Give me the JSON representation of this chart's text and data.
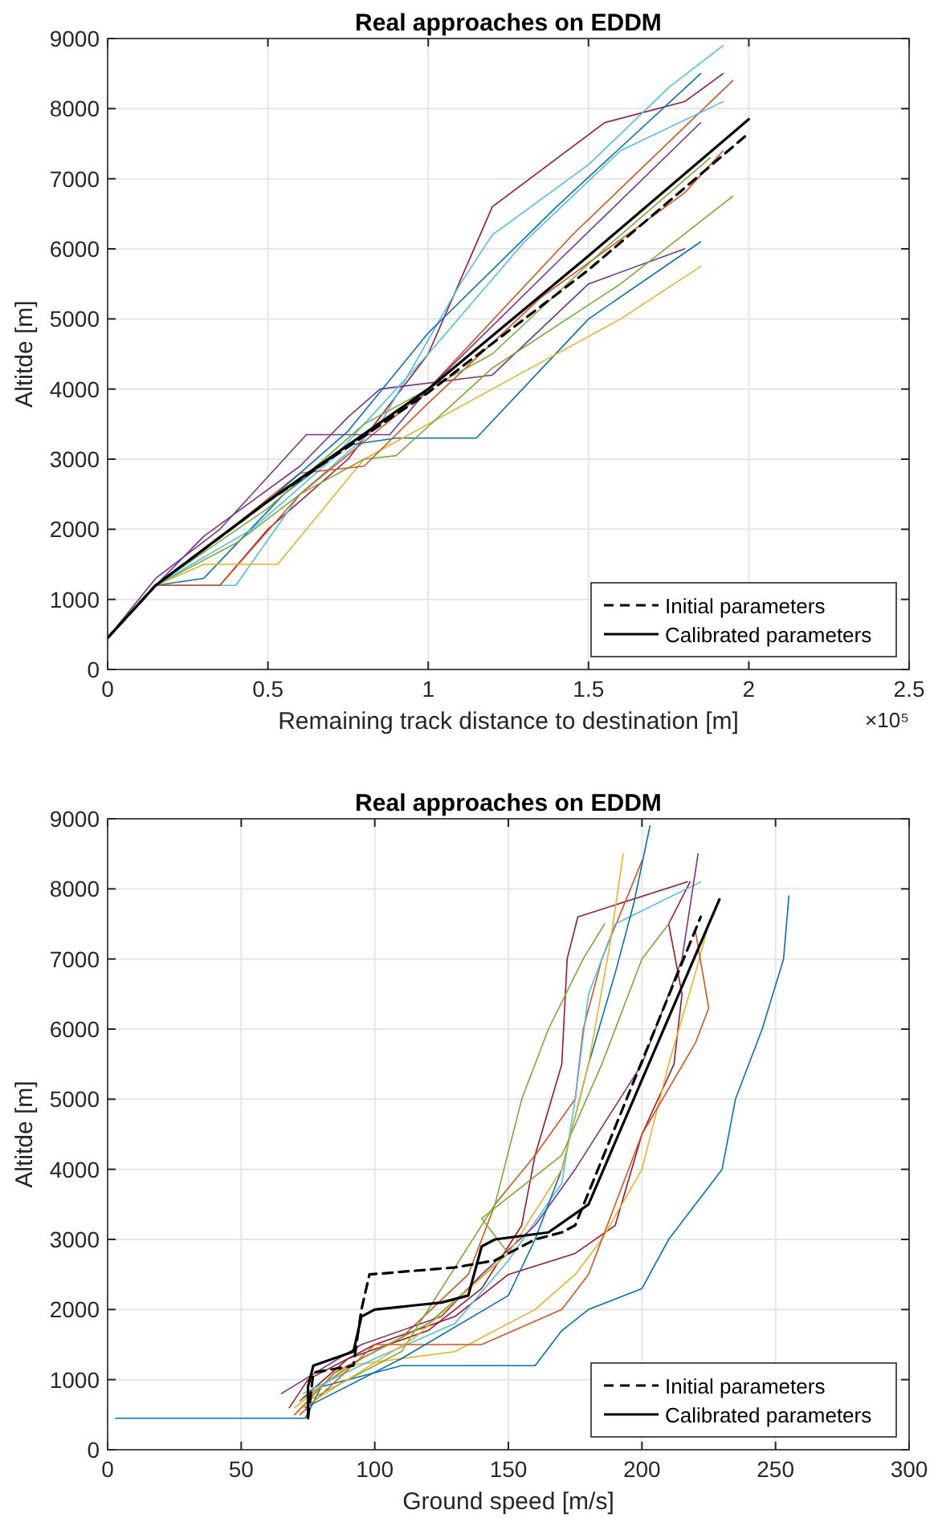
{
  "chart_data": [
    {
      "type": "line",
      "title": "Real approaches on EDDM",
      "xlabel": "Remaining track distance to destination [m]",
      "ylabel": "Altitde [m]",
      "annotations": [
        "×10⁵"
      ],
      "xlim": [
        0,
        2.5
      ],
      "xticks": [
        0,
        0.5,
        1,
        1.5,
        2,
        2.5
      ],
      "ylim": [
        0,
        9000
      ],
      "yticks": [
        0,
        1000,
        2000,
        3000,
        4000,
        5000,
        6000,
        7000,
        8000,
        9000
      ],
      "grid": true,
      "legend": "bottom right",
      "series": [
        {
          "color": "#a2142f",
          "x": [
            0,
            0.15,
            0.35,
            0.5,
            0.75,
            1,
            1.2,
            1.55,
            1.8,
            1.92
          ],
          "values": [
            450,
            1200,
            1200,
            2000,
            3000,
            4500,
            6600,
            7800,
            8100,
            8500
          ]
        },
        {
          "color": "#4dbeee",
          "x": [
            0,
            0.15,
            0.4,
            0.6,
            0.85,
            1.1,
            1.2,
            1.5,
            1.75,
            1.92
          ],
          "values": [
            450,
            1200,
            1200,
            2500,
            3500,
            5500,
            6200,
            7200,
            8300,
            8900
          ]
        },
        {
          "color": "#0072bd",
          "x": [
            0,
            0.15,
            0.3,
            0.55,
            0.75,
            0.9,
            1.15,
            1.5,
            1.85
          ],
          "values": [
            450,
            1200,
            1300,
            2500,
            3200,
            3300,
            3300,
            5000,
            6100
          ]
        },
        {
          "color": "#d95319",
          "x": [
            0,
            0.15,
            0.35,
            0.6,
            1,
            1.45,
            1.95
          ],
          "values": [
            450,
            1200,
            1200,
            2500,
            4000,
            6200,
            8400
          ]
        },
        {
          "color": "#edb120",
          "x": [
            0,
            0.15,
            0.3,
            0.53,
            0.8,
            1.2,
            1.6,
            1.85
          ],
          "values": [
            450,
            1200,
            1500,
            1500,
            3000,
            4000,
            5000,
            5750
          ]
        },
        {
          "color": "#7e2f8e",
          "x": [
            0,
            0.15,
            0.3,
            0.45,
            0.6,
            0.75,
            0.85,
            1.2,
            1.5,
            1.8
          ],
          "values": [
            450,
            1200,
            1900,
            2400,
            2900,
            3600,
            4000,
            4200,
            5500,
            6000
          ]
        },
        {
          "color": "#77ac30",
          "x": [
            0,
            0.15,
            0.4,
            0.6,
            0.8,
            0.9,
            1.2,
            1.6,
            1.95
          ],
          "values": [
            450,
            1200,
            1800,
            2500,
            3000,
            3050,
            4300,
            5500,
            6750
          ]
        },
        {
          "color": "#4dbeee",
          "x": [
            0,
            0.15,
            0.45,
            0.7,
            1,
            1.3,
            1.6,
            1.92
          ],
          "values": [
            450,
            1200,
            2000,
            3000,
            4500,
            6100,
            7400,
            8100
          ]
        },
        {
          "color": "#7e2f8e",
          "x": [
            0,
            0.15,
            0.35,
            0.62,
            0.88,
            1,
            1.4,
            1.85
          ],
          "values": [
            450,
            1300,
            2000,
            3350,
            3350,
            4000,
            5800,
            7800
          ]
        },
        {
          "color": "#d95319",
          "x": [
            0,
            0.15,
            0.3,
            0.6,
            0.8,
            1,
            1.35,
            1.8,
            1.92
          ],
          "values": [
            450,
            1200,
            1700,
            2800,
            2900,
            3800,
            5300,
            6800,
            7400
          ]
        },
        {
          "color": "#77ac30",
          "x": [
            0,
            0.15,
            0.5,
            0.8,
            1.2,
            1.55,
            1.88
          ],
          "values": [
            450,
            1200,
            2300,
            3500,
            4500,
            6000,
            7300
          ]
        },
        {
          "color": "#0072bd",
          "x": [
            0,
            0.15,
            0.5,
            0.75,
            1,
            1.4,
            1.85
          ],
          "values": [
            450,
            1200,
            2400,
            3400,
            4800,
            6600,
            8500
          ]
        },
        {
          "name": "Initial parameters",
          "color": "#000000",
          "line_style": "dashed",
          "x": [
            0,
            0.15,
            0.5,
            1,
            1.5,
            2
          ],
          "values": [
            450,
            1200,
            2400,
            3950,
            5700,
            7650
          ]
        },
        {
          "name": "Calibrated parameters",
          "color": "#000000",
          "line_style": "solid",
          "x": [
            0,
            0.15,
            0.5,
            1,
            1.5,
            2
          ],
          "values": [
            450,
            1200,
            2400,
            4000,
            5900,
            7850
          ]
        }
      ]
    },
    {
      "type": "line",
      "title": "Real approaches on EDDM",
      "xlabel": "Ground speed [m/s]",
      "ylabel": "Altitde [m]",
      "xlim": [
        0,
        300
      ],
      "xticks": [
        0,
        50,
        100,
        150,
        200,
        250,
        300
      ],
      "ylim": [
        0,
        9000
      ],
      "yticks": [
        0,
        1000,
        2000,
        3000,
        4000,
        5000,
        6000,
        7000,
        8000,
        9000
      ],
      "grid": true,
      "legend": "bottom right",
      "series": [
        {
          "color": "#0072bd",
          "x": [
            3,
            74,
            80,
            110,
            160,
            170,
            180,
            200,
            210,
            230,
            235,
            245,
            253,
            255
          ],
          "values": [
            450,
            450,
            900,
            1200,
            1200,
            1700,
            2000,
            2300,
            3000,
            4000,
            5000,
            6000,
            7000,
            7900
          ]
        },
        {
          "color": "#a2142f",
          "x": [
            68,
            75,
            100,
            130,
            150,
            175,
            190,
            200,
            212,
            215,
            210,
            218
          ],
          "values": [
            600,
            1000,
            1500,
            1900,
            2500,
            2800,
            3200,
            4500,
            5500,
            6500,
            7500,
            8100
          ]
        },
        {
          "color": "#a2142f",
          "x": [
            72,
            90,
            120,
            140,
            155,
            160,
            170,
            172,
            176,
            217
          ],
          "values": [
            700,
            1300,
            1700,
            2300,
            3200,
            4200,
            5500,
            7000,
            7600,
            8100
          ]
        },
        {
          "color": "#d95319",
          "x": [
            70,
            85,
            110,
            135,
            145,
            160,
            175,
            178,
            185,
            200
          ],
          "values": [
            500,
            1100,
            1600,
            2500,
            3500,
            4200,
            5000,
            6000,
            7000,
            8400
          ]
        },
        {
          "color": "#edb120",
          "x": [
            70,
            90,
            130,
            160,
            175,
            185,
            200,
            210,
            220,
            225
          ],
          "values": [
            600,
            1200,
            1400,
            2000,
            2500,
            3000,
            4000,
            5500,
            6800,
            7500
          ]
        },
        {
          "color": "#77ac30",
          "x": [
            72,
            95,
            120,
            150,
            140,
            170,
            185,
            200,
            210
          ],
          "values": [
            700,
            1300,
            1800,
            2800,
            3300,
            4200,
            5500,
            7000,
            7500
          ]
        },
        {
          "color": "#4dbeee",
          "x": [
            73,
            100,
            130,
            150,
            170,
            175,
            180,
            190,
            222
          ],
          "values": [
            800,
            1300,
            1800,
            2700,
            3800,
            5000,
            6500,
            7500,
            8100
          ]
        },
        {
          "color": "#7e2f8e",
          "x": [
            65,
            95,
            125,
            140,
            160,
            175,
            200,
            215,
            221
          ],
          "values": [
            800,
            1500,
            1900,
            2500,
            3200,
            4000,
            5500,
            7000,
            8500
          ]
        },
        {
          "color": "#d95319",
          "x": [
            72,
            100,
            140,
            170,
            180,
            190,
            200,
            220,
            225,
            220
          ],
          "values": [
            500,
            1500,
            1500,
            2000,
            2500,
            3500,
            4500,
            5800,
            6300,
            7400
          ]
        },
        {
          "color": "#0072bd",
          "x": [
            74,
            110,
            150,
            160,
            170,
            180,
            190,
            197,
            203
          ],
          "values": [
            600,
            1300,
            2200,
            3000,
            4000,
            5500,
            6800,
            7800,
            8900
          ]
        },
        {
          "color": "#77ac30",
          "x": [
            75,
            110,
            145,
            155,
            165,
            178,
            186
          ],
          "values": [
            700,
            1400,
            3500,
            5000,
            6000,
            7000,
            7500
          ]
        },
        {
          "color": "#edb120",
          "x": [
            73,
            115,
            150,
            170,
            180,
            188,
            193
          ],
          "values": [
            600,
            1600,
            2800,
            4000,
            5500,
            7200,
            8500
          ]
        },
        {
          "name": "Initial parameters",
          "color": "#000000",
          "line_style": "dashed",
          "x": [
            75,
            77,
            92,
            95,
            98,
            130,
            145,
            160,
            170,
            175,
            222
          ],
          "values": [
            450,
            1100,
            1200,
            2000,
            2500,
            2600,
            2700,
            3000,
            3100,
            3200,
            7600
          ]
        },
        {
          "name": "Calibrated parameters",
          "color": "#000000",
          "line_style": "solid",
          "x": [
            75,
            75,
            77,
            92,
            95,
            100,
            125,
            135,
            140,
            145,
            165,
            180,
            229
          ],
          "values": [
            450,
            900,
            1200,
            1400,
            1900,
            2000,
            2100,
            2200,
            2900,
            3000,
            3100,
            3500,
            7850
          ]
        }
      ]
    }
  ]
}
